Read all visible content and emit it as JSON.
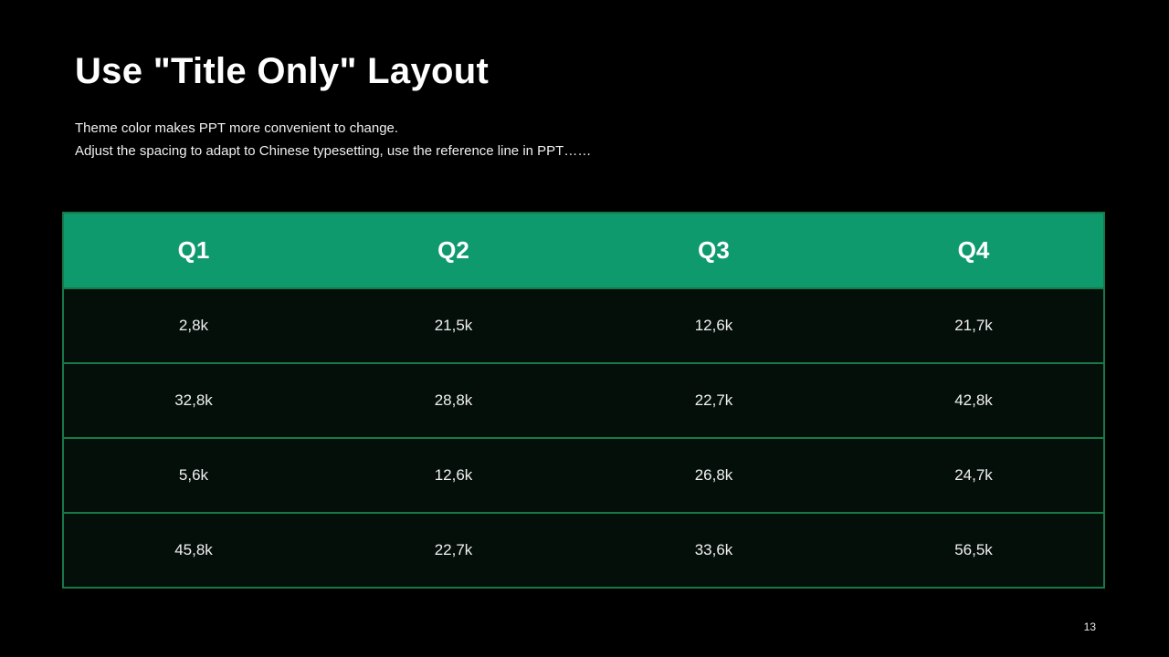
{
  "slide": {
    "title": "Use \"Title Only\" Layout",
    "subtitle_line1": "Theme color makes PPT more convenient to change.",
    "subtitle_line2": "Adjust the spacing to adapt to Chinese typesetting, use the reference line in PPT……",
    "page_number": "13"
  },
  "table": {
    "headers": [
      "Q1",
      "Q2",
      "Q3",
      "Q4"
    ],
    "rows": [
      [
        "2,8k",
        "21,5k",
        "12,6k",
        "21,7k"
      ],
      [
        "32,8k",
        "28,8k",
        "22,7k",
        "42,8k"
      ],
      [
        "5,6k",
        "12,6k",
        "26,8k",
        "24,7k"
      ],
      [
        "45,8k",
        "22,7k",
        "33,6k",
        "56,5k"
      ]
    ]
  },
  "colors": {
    "background": "#000000",
    "header_green": "#0F9A6D",
    "border_green": "#17794A",
    "cell_background": "#050F0A",
    "title_text": "#FFFFFF",
    "body_text": "#F0F0F0"
  }
}
